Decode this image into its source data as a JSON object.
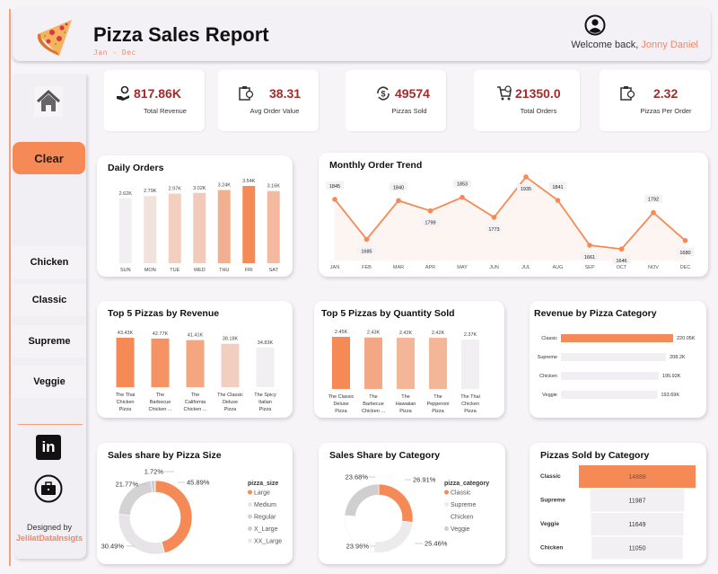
{
  "header": {
    "title": "Pizza Sales Report",
    "subtitle": "Jan - Dec",
    "welcome_prefix": "Welcome  back,",
    "user_name": "Jonny Daniel",
    "logo_icon": "pizza-slice-icon",
    "user_icon": "user-circle-icon"
  },
  "sidebar": {
    "home_icon": "home-icon",
    "clear_label": "Clear",
    "categories": [
      "Chicken",
      "Classic",
      "Supreme",
      "Veggie"
    ],
    "designed_by_label": "Designed by",
    "designer": "JelilatDataInsigts",
    "linkedin_label": "in",
    "portfolio_icon": "briefcase-icon"
  },
  "kpis": [
    {
      "value": "817.86K",
      "label": "Total Revenue",
      "icon": "money-hand-icon"
    },
    {
      "value": "38.31",
      "label": "Avg Order Value",
      "icon": "receipt-icon"
    },
    {
      "value": "49574",
      "label": "Pizzas Sold",
      "icon": "dollar-cycle-icon"
    },
    {
      "value": "21350.0",
      "label": "Total Orders",
      "icon": "cart-icon"
    },
    {
      "value": "2.32",
      "label": "Pizzas Per Order",
      "icon": "receipt-icon"
    }
  ],
  "colors": {
    "accent": "#f58a56",
    "accent_light": "#f7a37d",
    "accent_pale": "#f9c4aa",
    "kpi_value": "#a52a2a",
    "neutral_bar": "#f1eff2"
  },
  "chart_data": [
    {
      "id": "daily_orders",
      "type": "bar",
      "title": "Daily Orders",
      "categories": [
        "SUN",
        "MON",
        "TUE",
        "WED",
        "THU",
        "FRI",
        "SAT"
      ],
      "values": [
        2.62,
        2.79,
        2.97,
        3.02,
        3.24,
        3.54,
        3.16
      ],
      "labels": [
        "2.62K",
        "2.79K",
        "2.97K",
        "3.02K",
        "3.24K",
        "3.54K",
        "3.16K"
      ],
      "unit": "K",
      "ylim": [
        0,
        3.54
      ]
    },
    {
      "id": "monthly_trend",
      "type": "line",
      "title": "Monthly Order Trend",
      "categories": [
        "JAN",
        "FEB",
        "MAR",
        "APR",
        "MAY",
        "JUN",
        "JUL",
        "AUG",
        "SEP",
        "OCT",
        "NOV",
        "DEC"
      ],
      "values": [
        1845,
        1685,
        1840,
        1799,
        1853,
        1773,
        1935,
        1841,
        1661,
        1646,
        1792,
        1680
      ],
      "ylim": [
        1600,
        1960
      ]
    },
    {
      "id": "top5_revenue",
      "type": "bar",
      "title": "Top 5 Pizzas by Revenue",
      "categories": [
        "The Thai Chicken Pizza",
        "The Barbecue Chicken ...",
        "The California Chicken ...",
        "The Classic Deluxe Pizza",
        "The Spicy Italian Pizza"
      ],
      "values": [
        43.43,
        42.77,
        41.41,
        38.18,
        34.83
      ],
      "labels": [
        "43.43K",
        "42.77K",
        "41.41K",
        "38.18K",
        "34.83K"
      ],
      "unit": "K"
    },
    {
      "id": "top5_quantity",
      "type": "bar",
      "title": "Top 5 Pizzas by Quantity Sold",
      "categories": [
        "The Classic Deluxe Pizza",
        "The Barbecue Chicken ...",
        "The Hawaiian Pizza",
        "The Pepperoni Pizza",
        "The Thai Chicken Pizza"
      ],
      "values": [
        2.45,
        2.43,
        2.42,
        2.42,
        2.37
      ],
      "labels": [
        "2.45K",
        "2.43K",
        "2.42K",
        "2.42K",
        "2.37K"
      ],
      "unit": "K"
    },
    {
      "id": "revenue_by_category",
      "type": "bar",
      "orientation": "horizontal",
      "title": "Revenue by Pizza Category",
      "categories": [
        "Classic",
        "Supreme",
        "Chicken",
        "Veggie"
      ],
      "values": [
        220.05,
        208.2,
        195.92,
        193.69
      ],
      "labels": [
        "220.05K",
        "208.2K",
        "195.92K",
        "193.69K"
      ],
      "unit": "K"
    },
    {
      "id": "sales_by_size",
      "type": "pie",
      "donut": true,
      "title": "Sales share by Pizza Size",
      "legend_title": "pizza_size",
      "categories": [
        "Large",
        "Medium",
        "Regular",
        "X_Large",
        "XX_Large"
      ],
      "values": [
        45.89,
        30.49,
        21.77,
        1.72,
        0.13
      ],
      "labels": [
        "45.89%",
        "30.49%",
        "21.77%",
        "1.72%",
        ""
      ],
      "legend": "right"
    },
    {
      "id": "sales_by_category",
      "type": "pie",
      "donut": true,
      "title": "Sales Share by Category",
      "legend_title": "pizza_category",
      "categories": [
        "Classic",
        "Supreme",
        "Chicken",
        "Veggie"
      ],
      "values": [
        26.91,
        25.46,
        23.96,
        23.68
      ],
      "labels": [
        "26.91%",
        "25.46%",
        "23.96%",
        "23.68%"
      ],
      "legend": "right"
    },
    {
      "id": "pizzas_sold_by_category",
      "type": "bar",
      "orientation": "horizontal-funnel",
      "title": "Pizzas Sold by Category",
      "categories": [
        "Classic",
        "Supreme",
        "Veggie",
        "Chicken"
      ],
      "values": [
        14888,
        11987,
        11649,
        11050
      ],
      "labels": [
        "14888",
        "11987",
        "11649",
        "11050"
      ]
    }
  ]
}
